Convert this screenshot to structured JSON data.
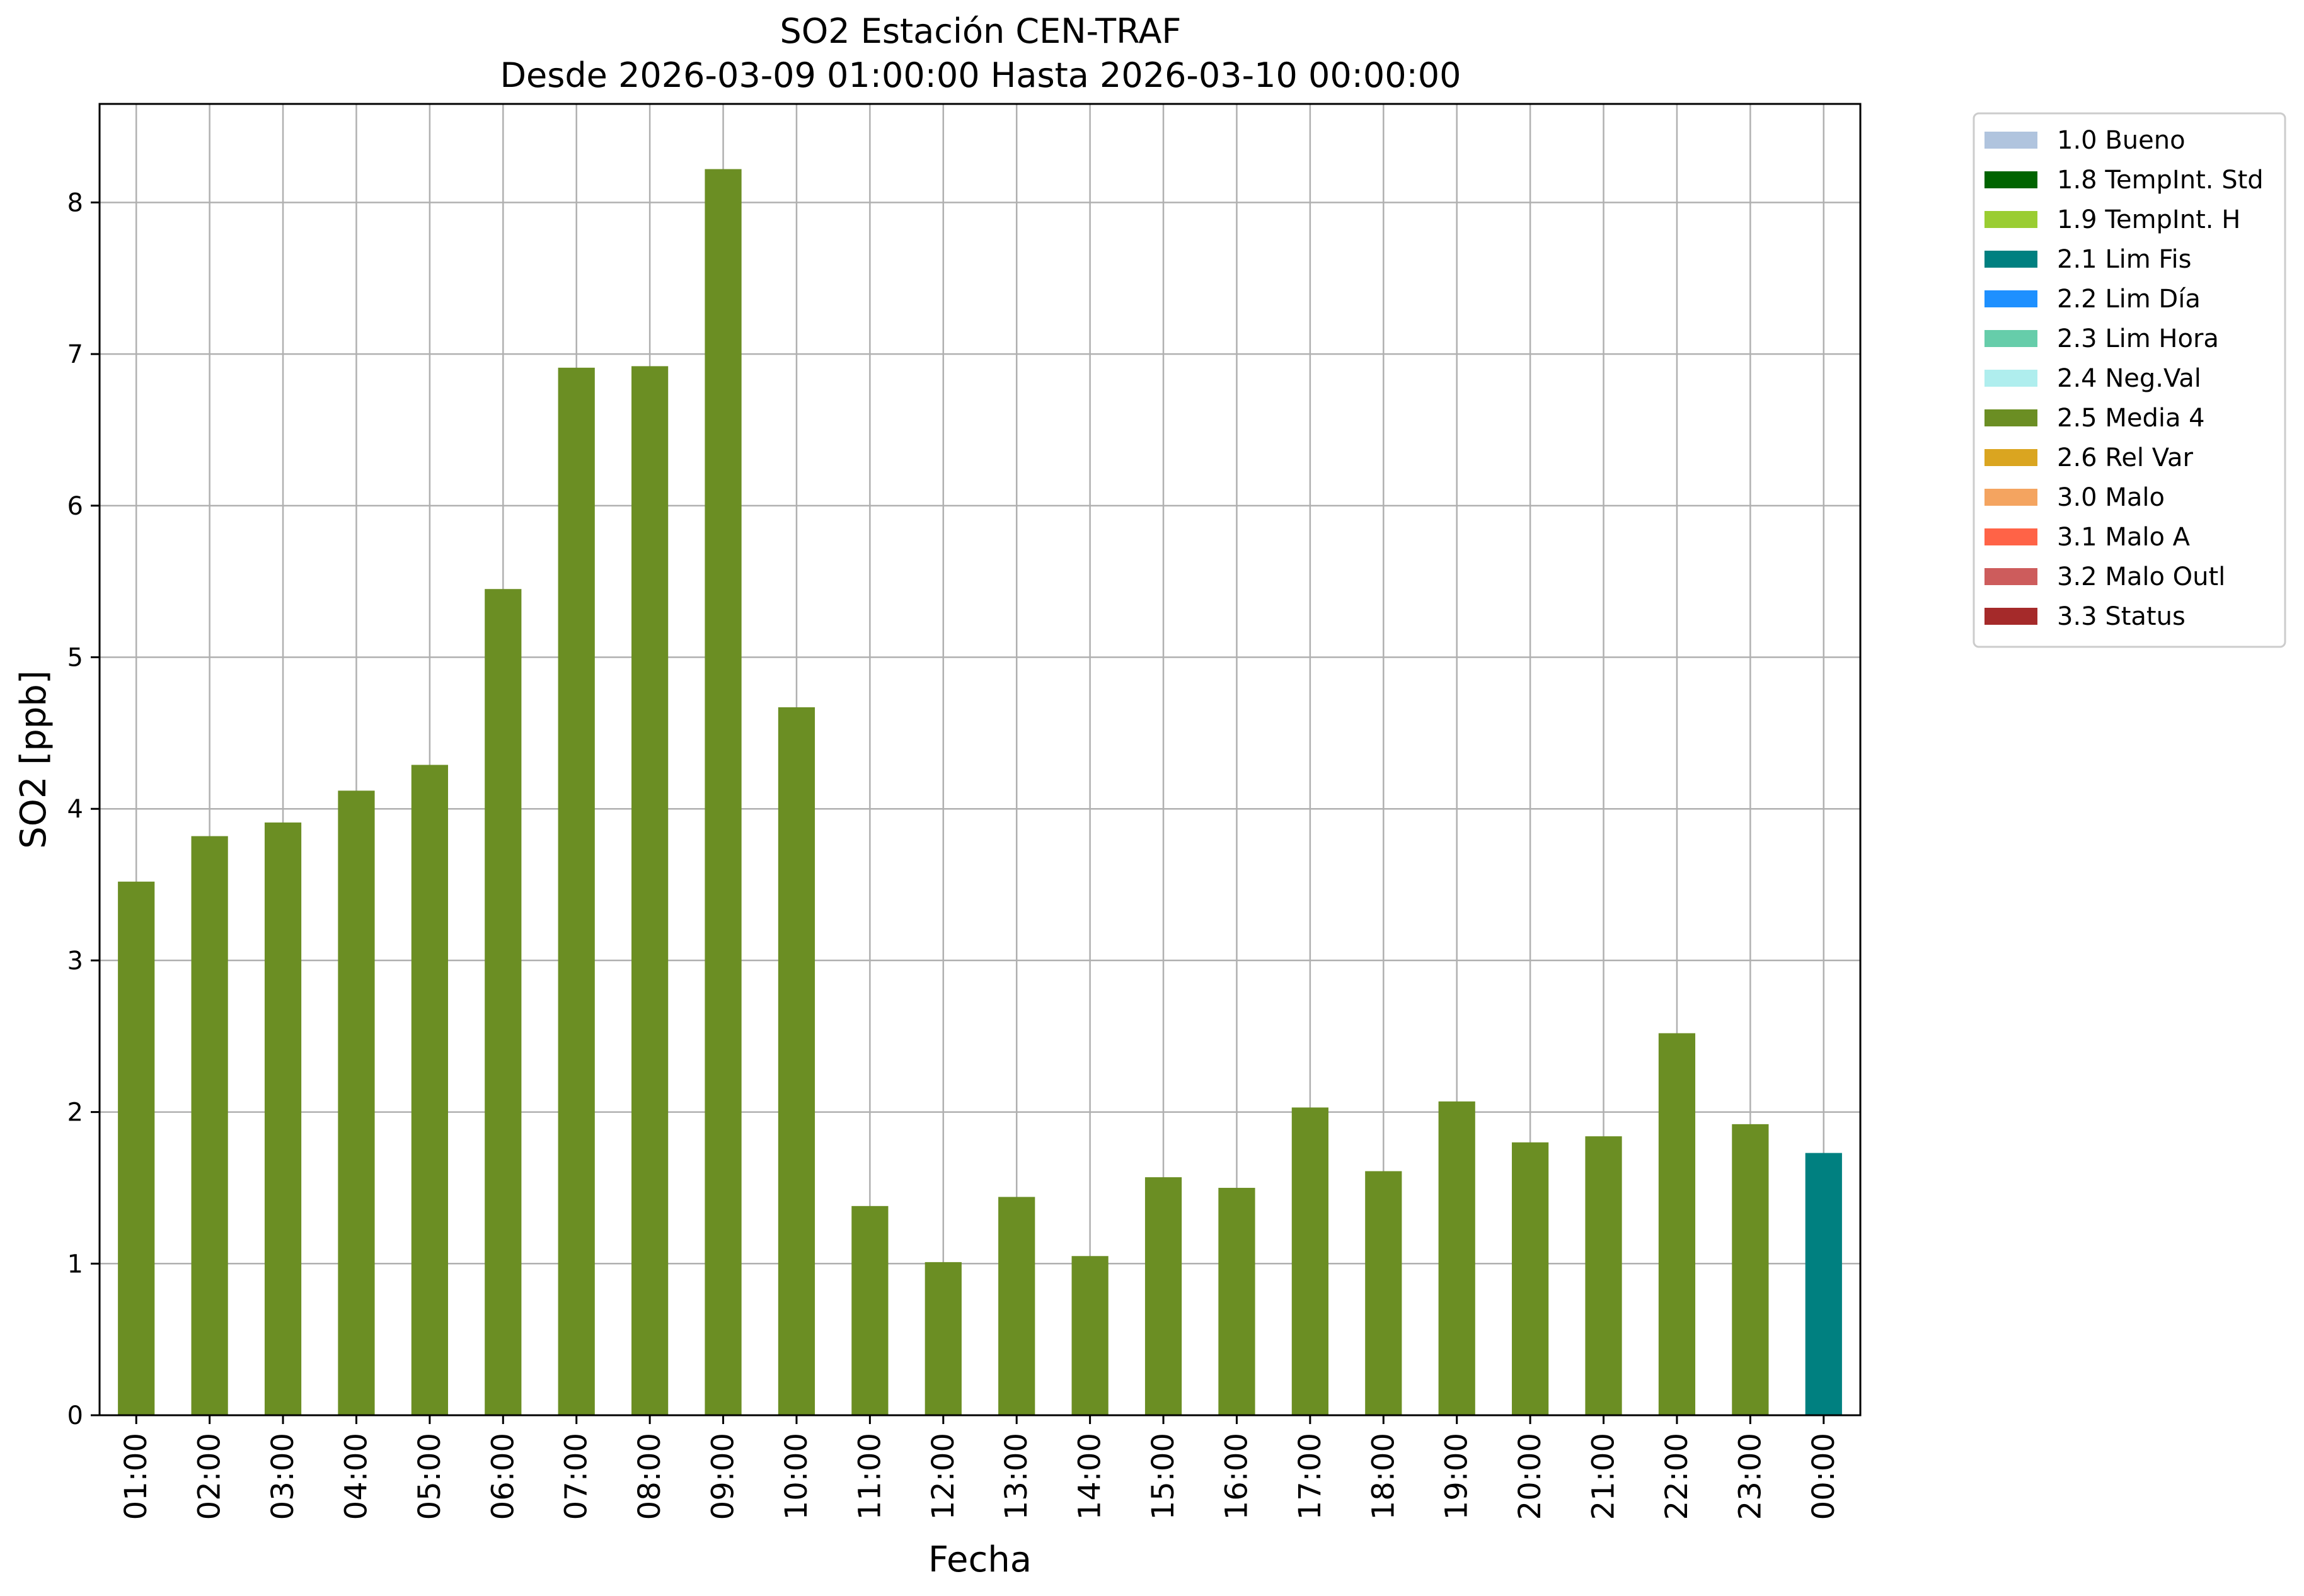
{
  "chart_data": {
    "type": "bar",
    "title_line1": "SO2 Estación CEN-TRAF",
    "title_line2": "Desde 2026-03-09 01:00:00 Hasta 2026-03-10 00:00:00",
    "xlabel": "Fecha",
    "ylabel": "SO2 [ppb]",
    "ylim": [
      0,
      8.65
    ],
    "yticks": [
      0,
      1,
      2,
      3,
      4,
      5,
      6,
      7,
      8
    ],
    "grid": true,
    "legend_position": "outside-right-top",
    "categories": [
      "01:00",
      "02:00",
      "03:00",
      "04:00",
      "05:00",
      "06:00",
      "07:00",
      "08:00",
      "09:00",
      "10:00",
      "11:00",
      "12:00",
      "13:00",
      "14:00",
      "15:00",
      "16:00",
      "17:00",
      "18:00",
      "19:00",
      "20:00",
      "21:00",
      "22:00",
      "23:00",
      "00:00"
    ],
    "values": [
      3.52,
      3.82,
      3.91,
      4.12,
      4.29,
      5.45,
      6.91,
      6.92,
      8.22,
      4.67,
      1.38,
      1.01,
      1.44,
      1.05,
      1.57,
      1.5,
      2.03,
      1.61,
      2.07,
      1.8,
      1.84,
      2.52,
      1.92,
      1.73
    ],
    "bar_flags": [
      "2.5 Media 4",
      "2.5 Media 4",
      "2.5 Media 4",
      "2.5 Media 4",
      "2.5 Media 4",
      "2.5 Media 4",
      "2.5 Media 4",
      "2.5 Media 4",
      "2.5 Media 4",
      "2.5 Media 4",
      "2.5 Media 4",
      "2.5 Media 4",
      "2.5 Media 4",
      "2.5 Media 4",
      "2.5 Media 4",
      "2.5 Media 4",
      "2.5 Media 4",
      "2.5 Media 4",
      "2.5 Media 4",
      "2.5 Media 4",
      "2.5 Media 4",
      "2.5 Media 4",
      "2.5 Media 4",
      "2.1 Lim Fis"
    ],
    "legend": [
      {
        "label": "1.0 Bueno",
        "color": "#b0c4de"
      },
      {
        "label": "1.8 TempInt. Std",
        "color": "#006400"
      },
      {
        "label": "1.9 TempInt. H",
        "color": "#9acd32"
      },
      {
        "label": "2.1 Lim Fis",
        "color": "#008080"
      },
      {
        "label": "2.2 Lim Día",
        "color": "#1e90ff"
      },
      {
        "label": "2.3 Lim Hora",
        "color": "#66cdaa"
      },
      {
        "label": "2.4 Neg.Val",
        "color": "#afeeee"
      },
      {
        "label": "2.5 Media 4",
        "color": "#6b8e23"
      },
      {
        "label": "2.6 Rel Var",
        "color": "#daa520"
      },
      {
        "label": "3.0 Malo",
        "color": "#f4a460"
      },
      {
        "label": "3.1 Malo A",
        "color": "#ff6347"
      },
      {
        "label": "3.2 Malo Outl",
        "color": "#cd5c5c"
      },
      {
        "label": "3.3 Status",
        "color": "#a52a2a"
      }
    ]
  }
}
